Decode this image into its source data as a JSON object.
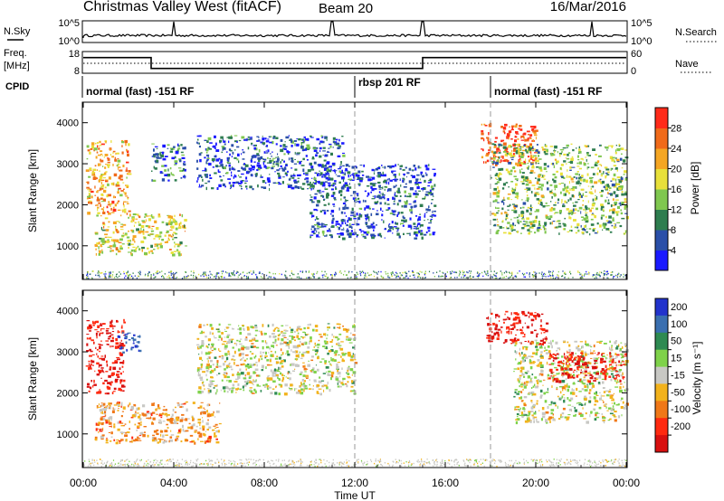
{
  "header": {
    "station": "Christmas Valley West (fitACF)",
    "beam": "Beam 20",
    "date": "16/Mar/2016"
  },
  "strip_nsky": {
    "label": "N.Sky",
    "right_label": "N.Search",
    "left_ticks": [
      "10^5",
      "10^0"
    ],
    "right_ticks": [
      "10^5",
      "10^0"
    ]
  },
  "strip_freq": {
    "label_line1": "Freq.",
    "label_line2": "[MHz]",
    "right_label": "Nave",
    "left_ticks": [
      "18",
      "8"
    ],
    "right_ticks": [
      "60",
      "0"
    ]
  },
  "cpid": {
    "label": "CPID",
    "segments": [
      {
        "text": "normal (fast) -151 RF",
        "start_hour": 0
      },
      {
        "text": "rbsp 201 RF",
        "start_hour": 12
      },
      {
        "text": "normal (fast) -151 RF",
        "start_hour": 18
      }
    ]
  },
  "power_panel": {
    "ylabel": "Slant Range [km]",
    "yticks": [
      "1000",
      "2000",
      "3000",
      "4000"
    ],
    "colorbar_label": "Power [dB]",
    "colorbar_ticks": [
      "4",
      "8",
      "12",
      "16",
      "20",
      "24",
      "28"
    ],
    "colors": [
      "#1a1aff",
      "#2a4fa8",
      "#2e7d4f",
      "#7fc74f",
      "#e8e03a",
      "#f5a623",
      "#f06a1a",
      "#ff2b1a"
    ]
  },
  "velocity_panel": {
    "ylabel": "Slant Range [km]",
    "yticks": [
      "1000",
      "2000",
      "3000",
      "4000"
    ],
    "colorbar_label": "Velocity [m s⁻¹]",
    "colorbar_ticks": [
      "200",
      "100",
      "50",
      "15",
      "-15",
      "-50",
      "-100",
      "-200"
    ],
    "colors": [
      "#2233cc",
      "#3a6fb0",
      "#2e8a52",
      "#7fd24a",
      "#c8c8c4",
      "#f2b21c",
      "#f07818",
      "#ff2a10",
      "#d81010"
    ]
  },
  "xaxis": {
    "label": "Time UT",
    "ticks": [
      "00:00",
      "04:00",
      "08:00",
      "12:00",
      "16:00",
      "20:00",
      "00:00"
    ]
  },
  "chart_data": {
    "type": "heatmap",
    "x": {
      "label": "Time UT",
      "range_hours": [
        0,
        24
      ]
    },
    "y": {
      "label": "Slant Range [km]",
      "range": [
        180,
        4500
      ]
    },
    "nsky_spikes_hours": [
      4,
      11,
      15,
      22.5
    ],
    "frequency_mhz": [
      {
        "start_hour": 0,
        "end_hour": 3,
        "value": 15
      },
      {
        "start_hour": 3,
        "end_hour": 15,
        "value": 10
      },
      {
        "start_hour": 15,
        "end_hour": 24,
        "value": 15
      }
    ],
    "nave": 20,
    "power_db": {
      "cbar_range": [
        0,
        32
      ],
      "regions": [
        {
          "t": [
            0.1,
            2.0
          ],
          "r": [
            1800,
            3600
          ],
          "db": 22
        },
        {
          "t": [
            0.5,
            4.5
          ],
          "r": [
            800,
            1800
          ],
          "db": 18
        },
        {
          "t": [
            3.0,
            4.5
          ],
          "r": [
            2600,
            3500
          ],
          "db": 8
        },
        {
          "t": [
            5.0,
            11.5
          ],
          "r": [
            2400,
            3700
          ],
          "db": 6
        },
        {
          "t": [
            10.0,
            15.5
          ],
          "r": [
            1200,
            3000
          ],
          "db": 6
        },
        {
          "t": [
            17.5,
            20.0
          ],
          "r": [
            3000,
            4000
          ],
          "db": 28
        },
        {
          "t": [
            18.0,
            24.0
          ],
          "r": [
            1300,
            3500
          ],
          "db": 14
        }
      ]
    },
    "velocity_ms": {
      "cbar_range": [
        -250,
        250
      ],
      "regions": [
        {
          "t": [
            0.1,
            1.8
          ],
          "r": [
            2000,
            3800
          ],
          "v": -200
        },
        {
          "t": [
            0.5,
            6.0
          ],
          "r": [
            800,
            1800
          ],
          "v": -50
        },
        {
          "t": [
            1.5,
            2.5
          ],
          "r": [
            3000,
            3500
          ],
          "v": 200
        },
        {
          "t": [
            5.0,
            12.0
          ],
          "r": [
            2000,
            3700
          ],
          "v": 0
        },
        {
          "t": [
            17.8,
            20.5
          ],
          "r": [
            3200,
            4000
          ],
          "v": -200
        },
        {
          "t": [
            19.0,
            24.0
          ],
          "r": [
            1300,
            3300
          ],
          "v": 0
        },
        {
          "t": [
            20.5,
            24.0
          ],
          "r": [
            2300,
            3000
          ],
          "v": -200
        }
      ]
    }
  }
}
